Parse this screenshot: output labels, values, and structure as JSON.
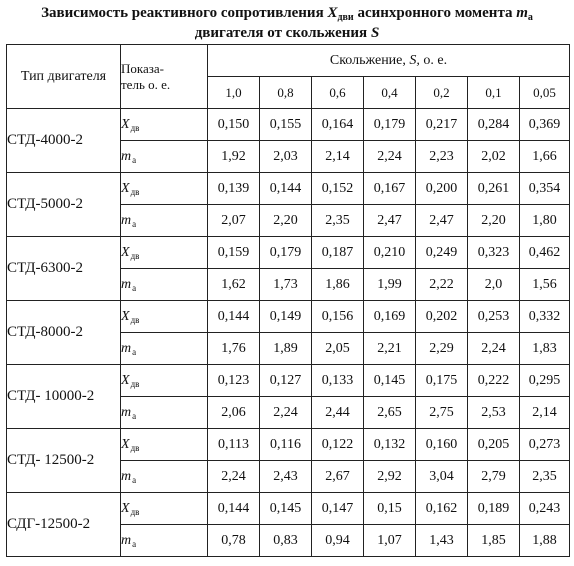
{
  "title": {
    "part1": "Зависимость реактивного сопротивления",
    "x_symbol": "X",
    "x_sub": "дви",
    "part2": "асинхронного момента",
    "m_symbol": "m",
    "m_sub": "a",
    "line2_text": "двигателя от скольжения",
    "s_symbol": "S"
  },
  "header": {
    "type_label": "Тип двигателя",
    "indicator_label_1": "Показа-",
    "indicator_label_2": "тель о. е.",
    "slip_label_prefix": "Скольжение,",
    "slip_symbol": "S,",
    "slip_unit": "о. е.",
    "slip_values": [
      "1,0",
      "0,8",
      "0,6",
      "0,4",
      "0,2",
      "0,1",
      "0,05"
    ]
  },
  "indicators": {
    "x_symbol": "X",
    "x_sub": "дв",
    "m_symbol": "m",
    "m_sub": "a"
  },
  "motors": [
    {
      "name": "СТД-4000-2",
      "x": [
        "0,150",
        "0,155",
        "0,164",
        "0,179",
        "0,217",
        "0,284",
        "0,369"
      ],
      "m": [
        "1,92",
        "2,03",
        "2,14",
        "2,24",
        "2,23",
        "2,02",
        "1,66"
      ]
    },
    {
      "name": "СТД-5000-2",
      "x": [
        "0,139",
        "0,144",
        "0,152",
        "0,167",
        "0,200",
        "0,261",
        "0,354"
      ],
      "m": [
        "2,07",
        "2,20",
        "2,35",
        "2,47",
        "2,47",
        "2,20",
        "1,80"
      ]
    },
    {
      "name": "СТД-6300-2",
      "x": [
        "0,159",
        "0,179",
        "0,187",
        "0,210",
        "0,249",
        "0,323",
        "0,462"
      ],
      "m": [
        "1,62",
        "1,73",
        "1,86",
        "1,99",
        "2,22",
        "2,0",
        "1,56"
      ]
    },
    {
      "name": "СТД-8000-2",
      "x": [
        "0,144",
        "0,149",
        "0,156",
        "0,169",
        "0,202",
        "0,253",
        "0,332"
      ],
      "m": [
        "1,76",
        "1,89",
        "2,05",
        "2,21",
        "2,29",
        "2,24",
        "1,83"
      ]
    },
    {
      "name": "СТД- 10000-2",
      "x": [
        "0,123",
        "0,127",
        "0,133",
        "0,145",
        "0,175",
        "0,222",
        "0,295"
      ],
      "m": [
        "2,06",
        "2,24",
        "2,44",
        "2,65",
        "2,75",
        "2,53",
        "2,14"
      ]
    },
    {
      "name": "СТД- 12500-2",
      "x": [
        "0,113",
        "0,116",
        "0,122",
        "0,132",
        "0,160",
        "0,205",
        "0,273"
      ],
      "m": [
        "2,24",
        "2,43",
        "2,67",
        "2,92",
        "3,04",
        "2,79",
        "2,35"
      ]
    },
    {
      "name": "СДГ-12500-2",
      "x": [
        "0,144",
        "0,145",
        "0,147",
        "0,15",
        "0,162",
        "0,189",
        "0,243"
      ],
      "m": [
        "0,78",
        "0,83",
        "0,94",
        "1,07",
        "1,43",
        "1,85",
        "1,88"
      ]
    }
  ]
}
